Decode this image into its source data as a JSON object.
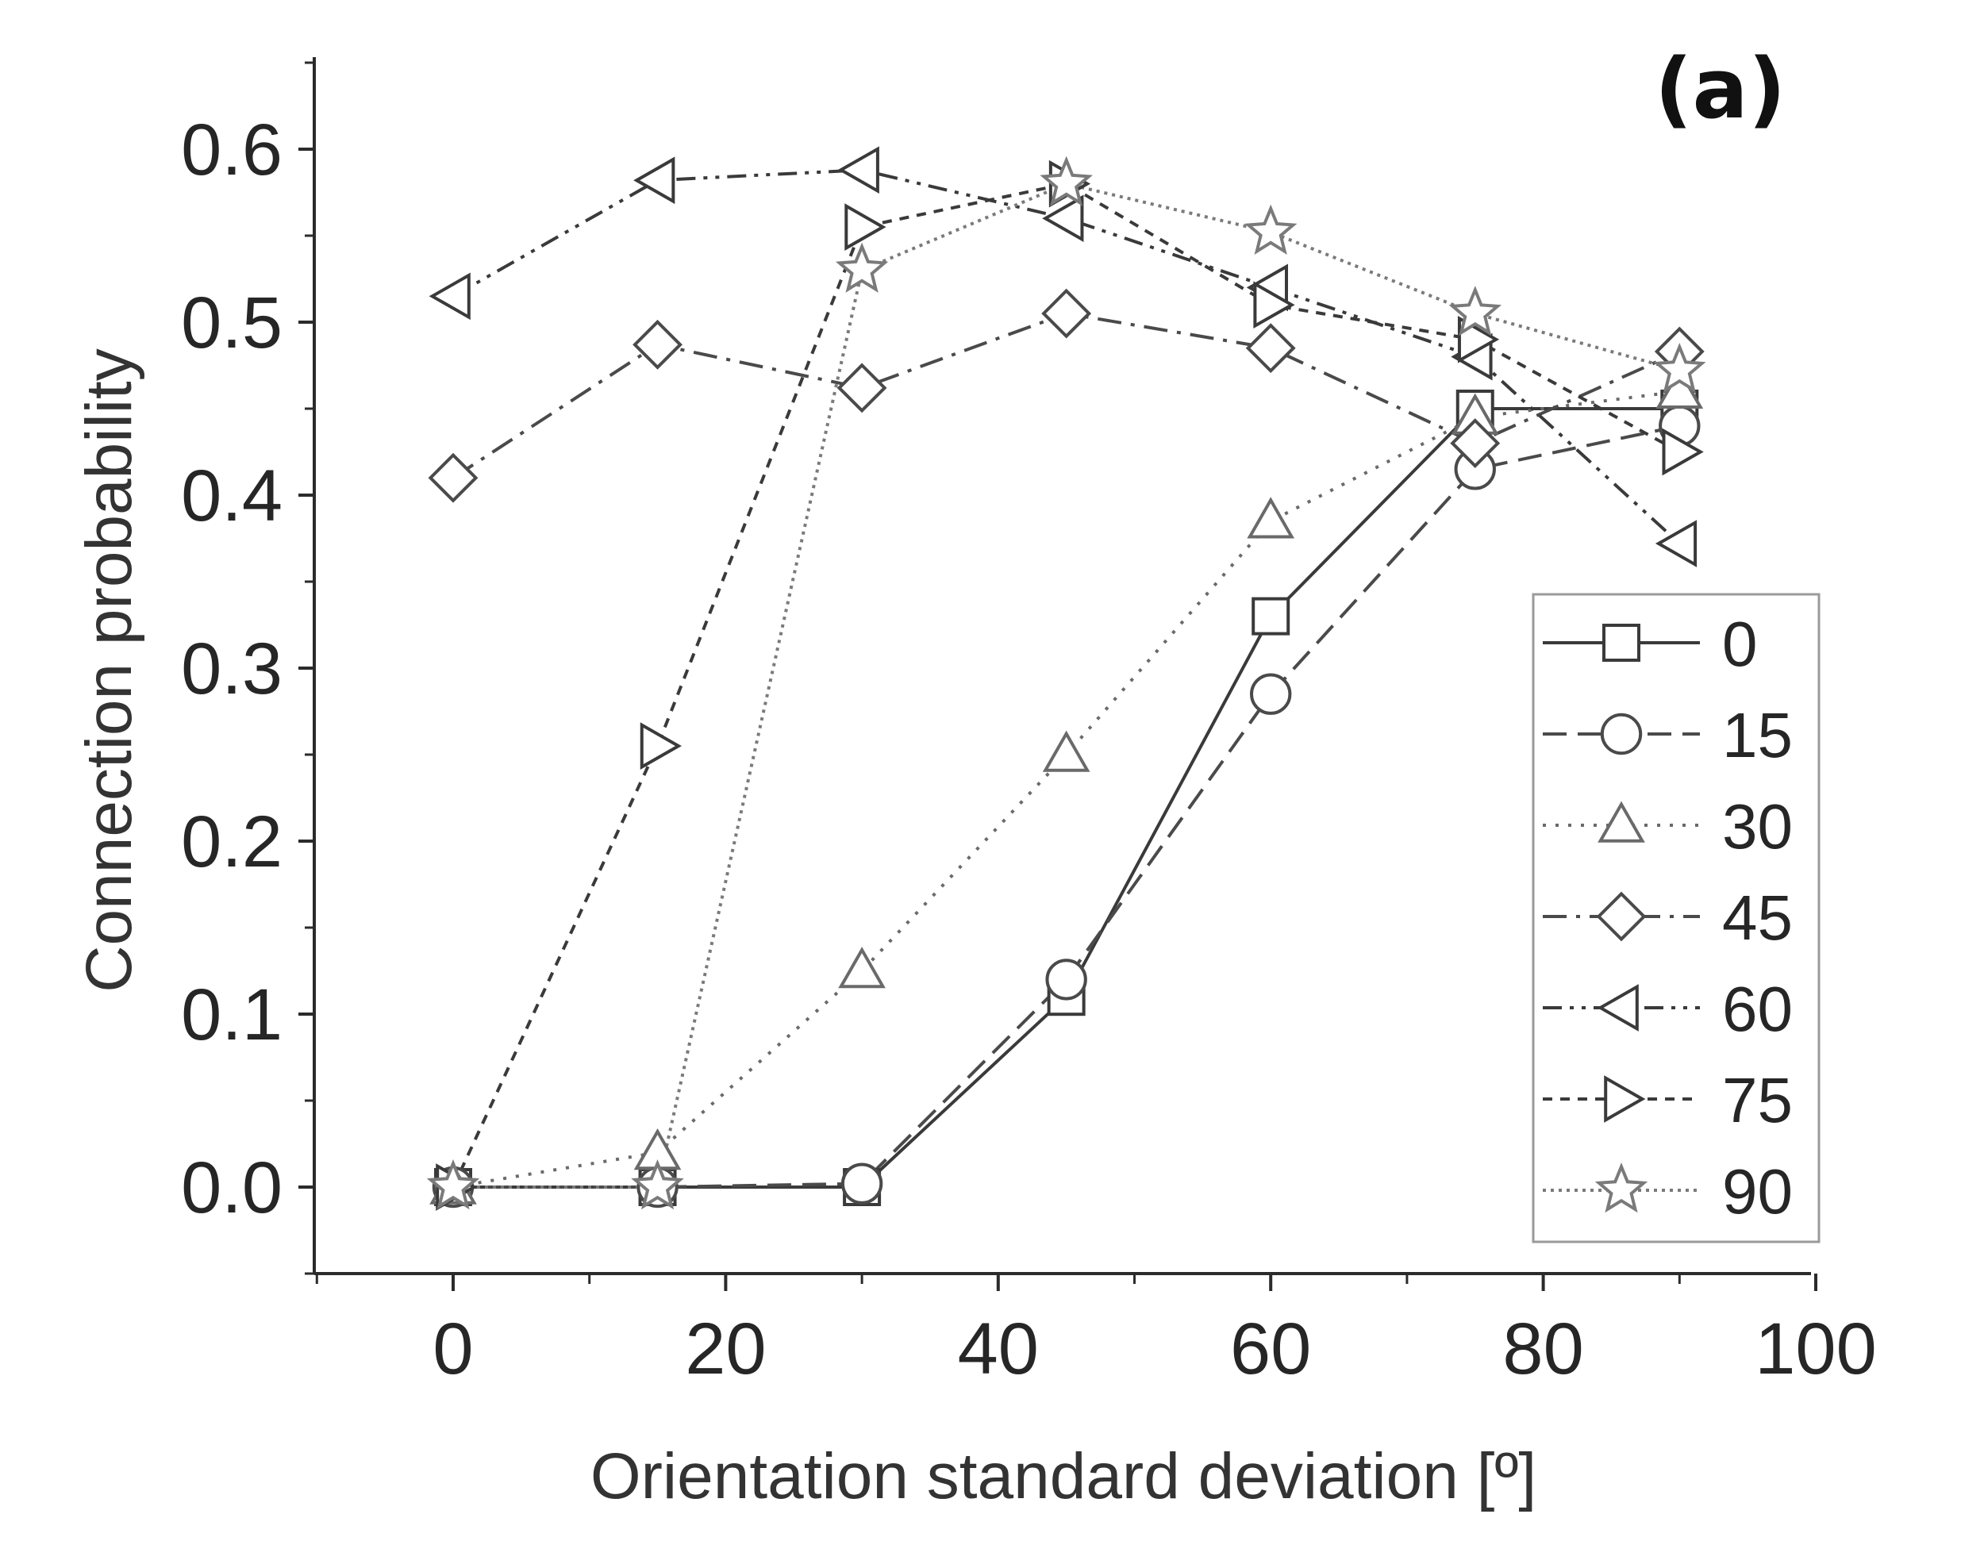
{
  "chart_data": {
    "type": "line",
    "panel_label": "(a)",
    "xlabel": "Orientation standard deviation [º]",
    "ylabel": "Connection probability",
    "xlim": [
      -10,
      100
    ],
    "ylim": [
      -0.05,
      0.65
    ],
    "x_ticks": [
      0,
      20,
      40,
      60,
      80,
      100
    ],
    "x_tick_labels": [
      "0",
      "20",
      "40",
      "60",
      "80",
      "100"
    ],
    "y_ticks": [
      0.0,
      0.1,
      0.2,
      0.3,
      0.4,
      0.5,
      0.6
    ],
    "y_tick_labels": [
      "0.0",
      "0.1",
      "0.2",
      "0.3",
      "0.4",
      "0.5",
      "0.6"
    ],
    "grid": false,
    "legend_position": "bottom-right",
    "x": [
      0,
      15,
      30,
      45,
      60,
      75,
      90
    ],
    "series": [
      {
        "name": "0",
        "marker": "square",
        "dash": "solid",
        "color": "#3a3a3a",
        "values": [
          0.0,
          0.0,
          0.0,
          0.11,
          0.33,
          0.45,
          0.45
        ]
      },
      {
        "name": "15",
        "marker": "circle",
        "dash": "dash",
        "color": "#4a4a4a",
        "values": [
          0.0,
          0.0,
          0.002,
          0.12,
          0.285,
          0.415,
          0.44
        ]
      },
      {
        "name": "30",
        "marker": "triangle-up",
        "dash": "dot",
        "color": "#6a6a6a",
        "values": [
          0.0,
          0.02,
          0.125,
          0.25,
          0.385,
          0.445,
          0.46
        ]
      },
      {
        "name": "45",
        "marker": "diamond",
        "dash": "dashdot",
        "color": "#4a4a4a",
        "values": [
          0.41,
          0.487,
          0.462,
          0.505,
          0.485,
          0.43,
          0.483
        ]
      },
      {
        "name": "60",
        "marker": "triangle-left",
        "dash": "dashdotdot",
        "color": "#3a3a3a",
        "values": [
          0.515,
          0.582,
          0.588,
          0.56,
          0.52,
          0.48,
          0.372
        ]
      },
      {
        "name": "75",
        "marker": "triangle-right",
        "dash": "shortdash",
        "color": "#3a3a3a",
        "values": [
          0.0,
          0.255,
          0.555,
          0.58,
          0.51,
          0.49,
          0.425
        ]
      },
      {
        "name": "90",
        "marker": "star",
        "dash": "shortdot",
        "color": "#7a7a7a",
        "values": [
          0.0,
          0.0,
          0.53,
          0.58,
          0.552,
          0.505,
          0.472
        ]
      }
    ]
  }
}
